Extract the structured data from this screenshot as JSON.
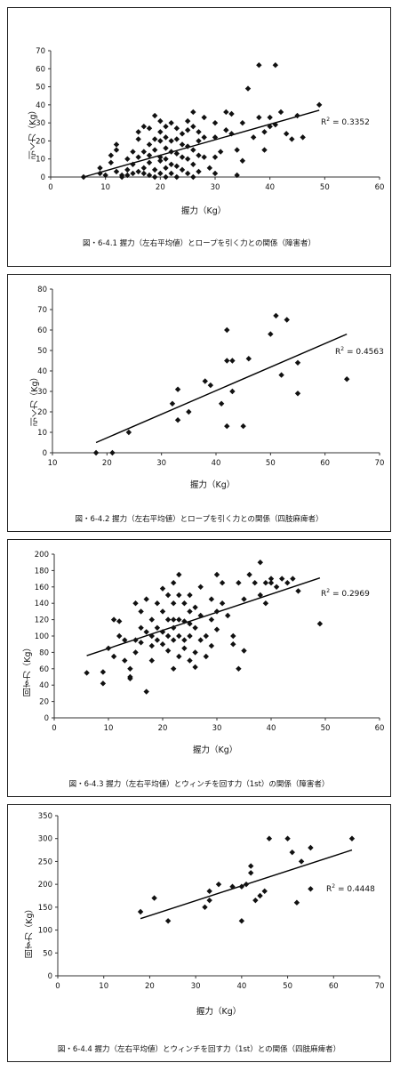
{
  "chart_data": [
    {
      "type": "scatter",
      "caption": "図・6-4.1 握力（左右平均値）とロープを引く力との関係（障害者）",
      "xlabel": "握力（Kg）",
      "ylabel": "引く力（Kg）",
      "xlim": [
        0,
        60
      ],
      "ylim": [
        0,
        70
      ],
      "xticks": [
        0,
        10,
        20,
        30,
        40,
        50,
        60
      ],
      "yticks": [
        0,
        10,
        20,
        30,
        40,
        50,
        60,
        70
      ],
      "r2_prefix": "R",
      "r2_value": " = 0.3352",
      "trend": [
        [
          6,
          0
        ],
        [
          49,
          37
        ]
      ],
      "points": [
        [
          6,
          0
        ],
        [
          9,
          2
        ],
        [
          9,
          5
        ],
        [
          10,
          1
        ],
        [
          11,
          8
        ],
        [
          11,
          12
        ],
        [
          12,
          15
        ],
        [
          12,
          18
        ],
        [
          12,
          3
        ],
        [
          13,
          1
        ],
        [
          13,
          0
        ],
        [
          14,
          1
        ],
        [
          14,
          4
        ],
        [
          14,
          10
        ],
        [
          15,
          7
        ],
        [
          15,
          2
        ],
        [
          15,
          14
        ],
        [
          16,
          25
        ],
        [
          16,
          21
        ],
        [
          16,
          11
        ],
        [
          16,
          3
        ],
        [
          17,
          28
        ],
        [
          17,
          14
        ],
        [
          17,
          5
        ],
        [
          17,
          2
        ],
        [
          18,
          27
        ],
        [
          18,
          18
        ],
        [
          18,
          12
        ],
        [
          18,
          8
        ],
        [
          18,
          1
        ],
        [
          19,
          34
        ],
        [
          19,
          21
        ],
        [
          19,
          15
        ],
        [
          19,
          4
        ],
        [
          19,
          0
        ],
        [
          20,
          31
        ],
        [
          20,
          25
        ],
        [
          20,
          20
        ],
        [
          20,
          11
        ],
        [
          20,
          9
        ],
        [
          20,
          2
        ],
        [
          21,
          28
        ],
        [
          21,
          22
        ],
        [
          21,
          16
        ],
        [
          21,
          10
        ],
        [
          21,
          5
        ],
        [
          21,
          0
        ],
        [
          22,
          30
        ],
        [
          22,
          20
        ],
        [
          22,
          14
        ],
        [
          22,
          7
        ],
        [
          22,
          2
        ],
        [
          23,
          27
        ],
        [
          23,
          21
        ],
        [
          23,
          13
        ],
        [
          23,
          6
        ],
        [
          23,
          0
        ],
        [
          24,
          24
        ],
        [
          24,
          18
        ],
        [
          24,
          11
        ],
        [
          24,
          4
        ],
        [
          25,
          31
        ],
        [
          25,
          26
        ],
        [
          25,
          17
        ],
        [
          25,
          10
        ],
        [
          25,
          2
        ],
        [
          26,
          36
        ],
        [
          26,
          28
        ],
        [
          26,
          15
        ],
        [
          26,
          7
        ],
        [
          26,
          0
        ],
        [
          27,
          25
        ],
        [
          27,
          20
        ],
        [
          27,
          12
        ],
        [
          27,
          3
        ],
        [
          28,
          33
        ],
        [
          28,
          22
        ],
        [
          28,
          11
        ],
        [
          29,
          5
        ],
        [
          30,
          30
        ],
        [
          30,
          22
        ],
        [
          30,
          11
        ],
        [
          30,
          2
        ],
        [
          31,
          14
        ],
        [
          32,
          36
        ],
        [
          32,
          26
        ],
        [
          33,
          24
        ],
        [
          33,
          35
        ],
        [
          34,
          15
        ],
        [
          34,
          1
        ],
        [
          35,
          30
        ],
        [
          35,
          9
        ],
        [
          36,
          49
        ],
        [
          37,
          22
        ],
        [
          38,
          62
        ],
        [
          38,
          33
        ],
        [
          39,
          15
        ],
        [
          39,
          25
        ],
        [
          40,
          28
        ],
        [
          40,
          33
        ],
        [
          41,
          62
        ],
        [
          41,
          29
        ],
        [
          42,
          36
        ],
        [
          43,
          24
        ],
        [
          44,
          21
        ],
        [
          45,
          34
        ],
        [
          46,
          22
        ],
        [
          49,
          40
        ]
      ]
    },
    {
      "type": "scatter",
      "caption": "図・6-4.2 握力（左右平均値）とロープを引く力との関係（四肢麻痺者）",
      "xlabel": "握力（Kg）",
      "ylabel": "引く力（Kg）",
      "xlim": [
        10,
        70
      ],
      "ylim": [
        0,
        80
      ],
      "xticks": [
        10,
        20,
        30,
        40,
        50,
        60,
        70
      ],
      "yticks": [
        0,
        10,
        20,
        30,
        40,
        50,
        60,
        70,
        80
      ],
      "r2_prefix": "R",
      "r2_value": " = 0.4563",
      "trend": [
        [
          18,
          5
        ],
        [
          64,
          58
        ]
      ],
      "points": [
        [
          18,
          0
        ],
        [
          21,
          0
        ],
        [
          24,
          10
        ],
        [
          32,
          24
        ],
        [
          33,
          31
        ],
        [
          33,
          16
        ],
        [
          35,
          20
        ],
        [
          38,
          35
        ],
        [
          39,
          33
        ],
        [
          41,
          24
        ],
        [
          42,
          13
        ],
        [
          42,
          45
        ],
        [
          42,
          60
        ],
        [
          43,
          45
        ],
        [
          43,
          30
        ],
        [
          45,
          13
        ],
        [
          46,
          46
        ],
        [
          50,
          58
        ],
        [
          51,
          67
        ],
        [
          52,
          38
        ],
        [
          53,
          65
        ],
        [
          55,
          44
        ],
        [
          55,
          29
        ],
        [
          64,
          36
        ]
      ]
    },
    {
      "type": "scatter",
      "caption": "図・6-4.3 握力（左右平均値）とウィンチを回す力（1st）の関係（障害者）",
      "xlabel": "握力（Kg）",
      "ylabel": "回す力（Kg）",
      "xlim": [
        0,
        60
      ],
      "ylim": [
        0,
        200
      ],
      "xticks": [
        0,
        10,
        20,
        30,
        40,
        50,
        60
      ],
      "yticks": [
        0,
        20,
        40,
        60,
        80,
        100,
        120,
        140,
        160,
        180,
        200
      ],
      "r2_prefix": "R",
      "r2_value": " = 0.2969",
      "trend": [
        [
          6,
          76
        ],
        [
          49,
          171
        ]
      ],
      "points": [
        [
          6,
          55
        ],
        [
          9,
          42
        ],
        [
          9,
          56
        ],
        [
          10,
          85
        ],
        [
          11,
          120
        ],
        [
          11,
          75
        ],
        [
          12,
          118
        ],
        [
          12,
          100
        ],
        [
          13,
          95
        ],
        [
          13,
          70
        ],
        [
          14,
          50
        ],
        [
          14,
          60
        ],
        [
          14,
          48
        ],
        [
          15,
          80
        ],
        [
          15,
          95
        ],
        [
          15,
          140
        ],
        [
          16,
          130
        ],
        [
          16,
          110
        ],
        [
          16,
          92
        ],
        [
          17,
          145
        ],
        [
          17,
          105
        ],
        [
          17,
          32
        ],
        [
          18,
          120
        ],
        [
          18,
          100
        ],
        [
          18,
          88
        ],
        [
          18,
          70
        ],
        [
          19,
          140
        ],
        [
          19,
          110
        ],
        [
          19,
          95
        ],
        [
          20,
          158
        ],
        [
          20,
          130
        ],
        [
          20,
          105
        ],
        [
          20,
          90
        ],
        [
          21,
          150
        ],
        [
          21,
          120
        ],
        [
          21,
          100
        ],
        [
          21,
          82
        ],
        [
          22,
          165
        ],
        [
          22,
          140
        ],
        [
          22,
          120
        ],
        [
          22,
          110
        ],
        [
          22,
          95
        ],
        [
          22,
          60
        ],
        [
          23,
          175
        ],
        [
          23,
          150
        ],
        [
          23,
          120
        ],
        [
          23,
          100
        ],
        [
          23,
          75
        ],
        [
          24,
          140
        ],
        [
          24,
          118
        ],
        [
          24,
          95
        ],
        [
          24,
          85
        ],
        [
          25,
          150
        ],
        [
          25,
          130
        ],
        [
          25,
          115
        ],
        [
          25,
          100
        ],
        [
          25,
          70
        ],
        [
          26,
          135
        ],
        [
          26,
          110
        ],
        [
          26,
          80
        ],
        [
          26,
          62
        ],
        [
          27,
          160
        ],
        [
          27,
          125
        ],
        [
          27,
          95
        ],
        [
          28,
          100
        ],
        [
          28,
          75
        ],
        [
          29,
          145
        ],
        [
          29,
          120
        ],
        [
          29,
          88
        ],
        [
          30,
          175
        ],
        [
          30,
          130
        ],
        [
          30,
          108
        ],
        [
          31,
          165
        ],
        [
          31,
          140
        ],
        [
          32,
          125
        ],
        [
          33,
          100
        ],
        [
          33,
          90
        ],
        [
          34,
          165
        ],
        [
          34,
          60
        ],
        [
          35,
          145
        ],
        [
          35,
          82
        ],
        [
          36,
          175
        ],
        [
          37,
          165
        ],
        [
          38,
          190
        ],
        [
          38,
          150
        ],
        [
          39,
          165
        ],
        [
          39,
          140
        ],
        [
          40,
          170
        ],
        [
          40,
          165
        ],
        [
          41,
          160
        ],
        [
          42,
          170
        ],
        [
          43,
          165
        ],
        [
          44,
          170
        ],
        [
          45,
          155
        ],
        [
          49,
          115
        ]
      ]
    },
    {
      "type": "scatter",
      "caption": "図・6-4.4 握力（左右平均値）とウィンチを回す力（1st）との関係（四肢麻痺者）",
      "xlabel": "握力（Kg）",
      "ylabel": "回す力（Kg）",
      "xlim": [
        0,
        70
      ],
      "ylim": [
        0,
        350
      ],
      "xticks": [
        0,
        10,
        20,
        30,
        40,
        50,
        60,
        70
      ],
      "yticks": [
        0,
        50,
        100,
        150,
        200,
        250,
        300,
        350
      ],
      "r2_prefix": "R",
      "r2_value": " = 0.4448",
      "trend": [
        [
          18,
          125
        ],
        [
          64,
          275
        ]
      ],
      "points": [
        [
          18,
          140
        ],
        [
          21,
          170
        ],
        [
          24,
          120
        ],
        [
          32,
          150
        ],
        [
          33,
          165
        ],
        [
          33,
          185
        ],
        [
          35,
          200
        ],
        [
          38,
          195
        ],
        [
          40,
          120
        ],
        [
          40,
          195
        ],
        [
          41,
          200
        ],
        [
          42,
          240
        ],
        [
          42,
          225
        ],
        [
          43,
          165
        ],
        [
          44,
          175
        ],
        [
          45,
          185
        ],
        [
          46,
          300
        ],
        [
          50,
          300
        ],
        [
          51,
          270
        ],
        [
          52,
          160
        ],
        [
          53,
          250
        ],
        [
          55,
          280
        ],
        [
          55,
          190
        ],
        [
          64,
          300
        ]
      ]
    }
  ]
}
